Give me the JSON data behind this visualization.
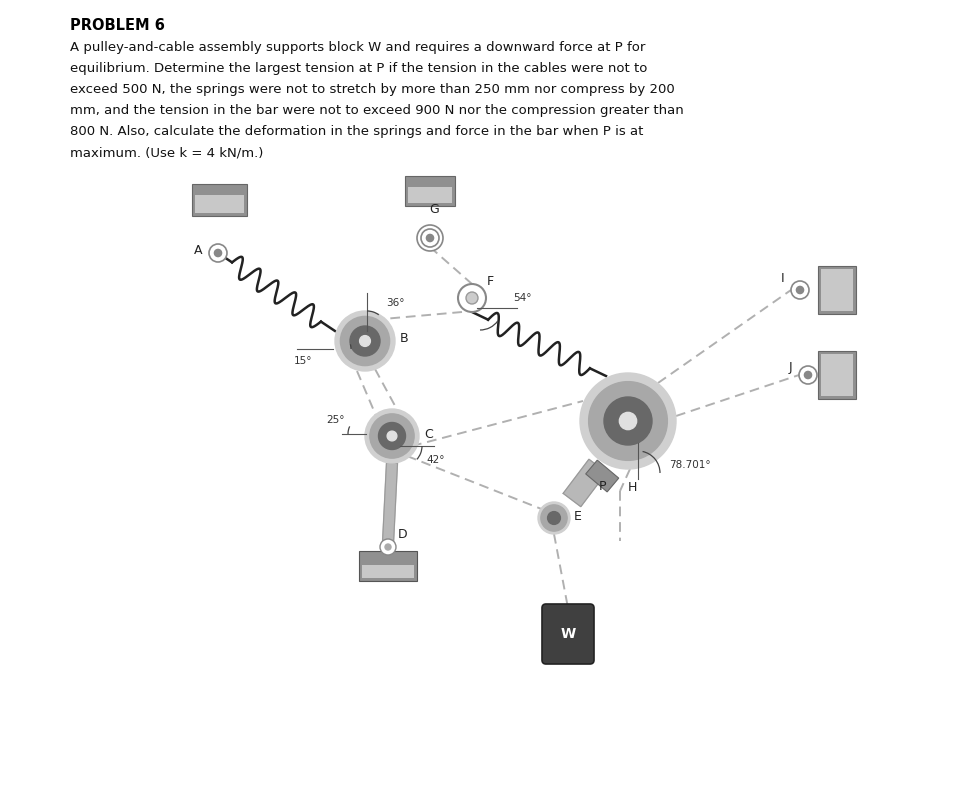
{
  "title": "PROBLEM 6",
  "problem_text_line1": "A pulley-and-cable assembly supports block W and requires a downward force at P for",
  "problem_text_line2": "equilibrium. Determine the largest tension at P if the tension in the cables were not to",
  "problem_text_line3": "exceed 500 N, the springs were not to stretch by more than 250 mm nor compress by 200",
  "problem_text_line4": "mm, and the tension in the bar were not to exceed 900 N nor the compression greater than",
  "problem_text_line5": "800 N. Also, calculate the deformation in the springs and force in the bar when P is at",
  "problem_text_line6": "maximum. (Use k = 4 kN/m.)",
  "bg_color": "#ffffff",
  "cable_color": "#b0b0b0",
  "spring_color": "#222222",
  "pulley_outer": "#d0d0d0",
  "pulley_mid": "#a8a8a8",
  "pulley_inner": "#686868",
  "support_light": "#c8c8c8",
  "support_dark": "#909090",
  "bar_color": "#b8b8b8",
  "block_top": "#a0a0a0",
  "block_bot": "#606060",
  "W_color": "#404040"
}
